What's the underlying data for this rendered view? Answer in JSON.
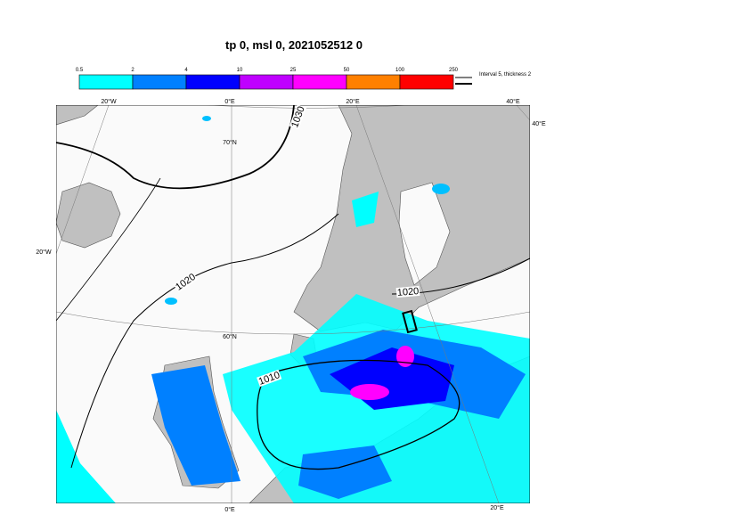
{
  "title": "tp 0, msl 0, 2021052512 0",
  "colorbar": {
    "levels": [
      0.5,
      2,
      4,
      10,
      25,
      50,
      100,
      250
    ],
    "colors": [
      "#00ffff",
      "#0080ff",
      "#0000ff",
      "#bf00ff",
      "#ff00ff",
      "#ff8000",
      "#ff0000"
    ]
  },
  "contour_legend": "Interval 5, thickness 2",
  "graticule": {
    "top": [
      "20°W",
      "0°E",
      "20°E",
      "40°E"
    ],
    "right": "40°E",
    "left": "20°W",
    "lat": [
      "70°N",
      "60°N"
    ],
    "bottom": [
      "0°E",
      "20°E"
    ]
  },
  "isobar_labels": [
    "1030",
    "1020",
    "1020",
    "1010"
  ]
}
